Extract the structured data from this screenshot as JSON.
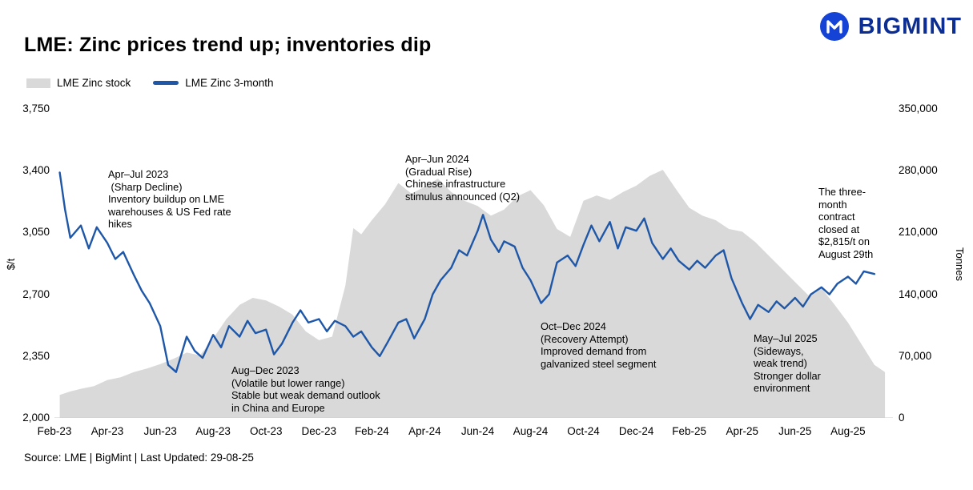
{
  "page": {
    "title": "LME: Zinc prices trend up; inventories dip",
    "source": "Source: LME | BigMint | Last Updated: 29-08-25"
  },
  "brand": {
    "name": "BIGMINT"
  },
  "colors": {
    "stock_area": "#d9d9d9",
    "price_line": "#1f57a8",
    "brand_blue": "#1443d6",
    "brand_navy": "#0c2e92"
  },
  "legend": [
    {
      "label": "LME Zinc stock"
    },
    {
      "label": "LME Zinc 3-month"
    }
  ],
  "annotations": {
    "sharp_decline": "Apr–Jul 2023\n (Sharp Decline)\nInventory buildup on LME\nwarehouses & US Fed rate\nhikes",
    "volatile_2023": "Aug–Dec 2023\n(Volatile but lower range)\nStable but weak demand outlook\nin China and Europe",
    "gradual_rise": "Apr–Jun 2024\n(Gradual Rise)\nChinese infrastructure\nstimulus announced (Q2)",
    "recovery_2024": "Oct–Dec 2024\n(Recovery Attempt)\nImproved demand from\ngalvanized steel segment",
    "sideways_2025": "May–Jul 2025\n(Sideways,\nweak trend)\nStronger dollar\nenvironment",
    "closing_note": "The three-\nmonth\ncontract\nclosed at\n$2,815/t on\nAugust 29th"
  },
  "chart_data": {
    "type": "combo",
    "title": "LME: Zinc prices trend up; inventories dip",
    "x_domain": [
      0,
      31.7
    ],
    "x_ticks": [
      "Feb-23",
      "Apr-23",
      "Jun-23",
      "Aug-23",
      "Oct-23",
      "Dec-23",
      "Feb-24",
      "Apr-24",
      "Jun-24",
      "Aug-24",
      "Oct-24",
      "Dec-24",
      "Feb-25",
      "Apr-25",
      "Jun-25",
      "Aug-25"
    ],
    "x_tick_positions_months": [
      0,
      2,
      4,
      6,
      8,
      10,
      12,
      14,
      16,
      18,
      20,
      22,
      24,
      26,
      28,
      30
    ],
    "left_axis": {
      "label": "$/t",
      "min": 2000,
      "max": 3750,
      "ticks": [
        "3,750",
        "3,400",
        "3,050",
        "2,700",
        "2,350",
        "2,000"
      ]
    },
    "right_axis": {
      "label": "Tonnes",
      "min": 0,
      "max": 350000,
      "ticks": [
        "350,000",
        "280,000",
        "210,000",
        "140,000",
        "70,000",
        "0"
      ]
    },
    "series": [
      {
        "name": "LME Zinc stock",
        "type": "area",
        "axis": "right",
        "color": "#d9d9d9",
        "x": [
          0.2,
          0.6,
          1.0,
          1.5,
          2.0,
          2.5,
          3.0,
          3.5,
          4.0,
          4.5,
          5.0,
          5.5,
          6.0,
          6.5,
          7.0,
          7.5,
          8.0,
          8.5,
          9.0,
          9.5,
          10.0,
          10.5,
          11.0,
          11.3,
          11.6,
          12.0,
          12.5,
          13.0,
          13.5,
          14.0,
          14.5,
          15.0,
          15.5,
          16.0,
          16.5,
          17.0,
          17.5,
          18.0,
          18.5,
          19.0,
          19.5,
          20.0,
          20.5,
          21.0,
          21.5,
          22.0,
          22.5,
          23.0,
          23.5,
          24.0,
          24.5,
          25.0,
          25.5,
          26.0,
          26.5,
          27.0,
          27.5,
          28.0,
          28.5,
          29.0,
          29.5,
          30.0,
          30.5,
          31.0,
          31.4
        ],
        "values": [
          26000,
          30000,
          33000,
          36000,
          43000,
          46000,
          52000,
          56000,
          61000,
          67000,
          74000,
          71000,
          90000,
          112000,
          128000,
          136000,
          133000,
          126000,
          117000,
          98000,
          88000,
          92000,
          150000,
          215000,
          208000,
          224000,
          242000,
          266000,
          254000,
          262000,
          271000,
          256000,
          246000,
          240000,
          229000,
          236000,
          251000,
          258000,
          241000,
          214000,
          205000,
          246000,
          252000,
          247000,
          256000,
          263000,
          274000,
          281000,
          259000,
          238000,
          229000,
          224000,
          214000,
          211000,
          199000,
          184000,
          169000,
          154000,
          139000,
          147000,
          128000,
          108000,
          84000,
          60000,
          52000
        ]
      },
      {
        "name": "LME Zinc 3-month",
        "type": "line",
        "axis": "left",
        "color": "#1f57a8",
        "x": [
          0.2,
          0.4,
          0.6,
          1.0,
          1.3,
          1.6,
          2.0,
          2.3,
          2.6,
          3.0,
          3.3,
          3.6,
          4.0,
          4.3,
          4.6,
          5.0,
          5.3,
          5.6,
          6.0,
          6.3,
          6.6,
          7.0,
          7.3,
          7.6,
          8.0,
          8.3,
          8.6,
          9.0,
          9.3,
          9.6,
          10.0,
          10.3,
          10.6,
          11.0,
          11.3,
          11.6,
          12.0,
          12.3,
          12.6,
          13.0,
          13.3,
          13.6,
          14.0,
          14.3,
          14.6,
          15.0,
          15.3,
          15.6,
          16.0,
          16.2,
          16.5,
          16.8,
          17.0,
          17.4,
          17.7,
          18.0,
          18.4,
          18.7,
          19.0,
          19.4,
          19.7,
          20.0,
          20.3,
          20.6,
          21.0,
          21.3,
          21.6,
          22.0,
          22.3,
          22.6,
          23.0,
          23.3,
          23.6,
          24.0,
          24.3,
          24.6,
          25.0,
          25.3,
          25.6,
          26.0,
          26.3,
          26.6,
          27.0,
          27.3,
          27.6,
          28.0,
          28.3,
          28.6,
          29.0,
          29.3,
          29.6,
          30.0,
          30.3,
          30.6,
          31.0
        ],
        "values": [
          3390,
          3180,
          3020,
          3090,
          2960,
          3080,
          2990,
          2900,
          2940,
          2810,
          2720,
          2650,
          2520,
          2300,
          2260,
          2460,
          2380,
          2340,
          2470,
          2400,
          2520,
          2460,
          2550,
          2480,
          2500,
          2360,
          2420,
          2540,
          2610,
          2540,
          2560,
          2490,
          2550,
          2520,
          2460,
          2490,
          2400,
          2350,
          2430,
          2540,
          2560,
          2450,
          2560,
          2700,
          2780,
          2850,
          2950,
          2920,
          3060,
          3150,
          3010,
          2940,
          3000,
          2970,
          2850,
          2780,
          2650,
          2700,
          2880,
          2920,
          2860,
          2980,
          3090,
          3000,
          3110,
          2960,
          3080,
          3060,
          3130,
          2990,
          2900,
          2960,
          2890,
          2840,
          2890,
          2850,
          2920,
          2950,
          2790,
          2650,
          2560,
          2640,
          2600,
          2660,
          2620,
          2680,
          2630,
          2700,
          2740,
          2700,
          2760,
          2800,
          2760,
          2830,
          2815
        ]
      }
    ]
  }
}
